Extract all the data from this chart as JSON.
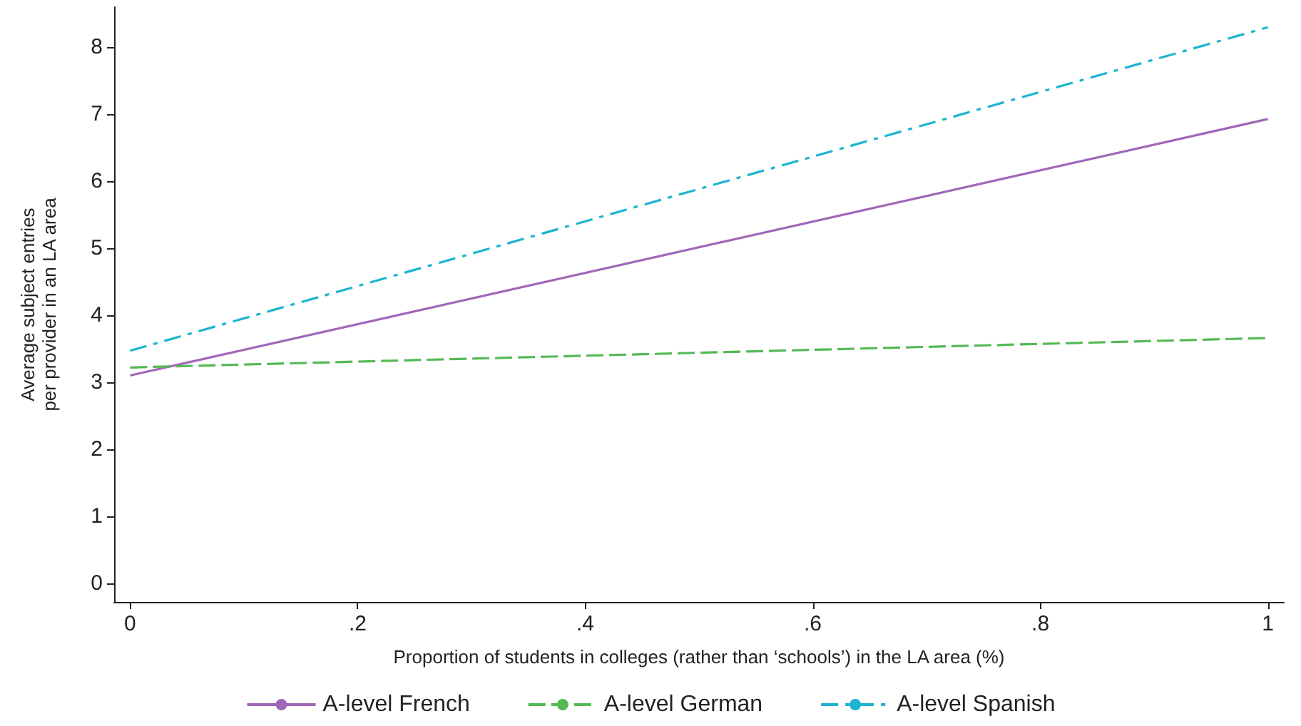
{
  "chart_data": {
    "type": "line",
    "xlabel": "Proportion of students in colleges (rather than ‘schools’) in the LA area (%)",
    "ylabel": "Average subject entries\nper provider in an LA area",
    "x": [
      0,
      1
    ],
    "series": [
      {
        "name": "A-level French",
        "color": "#a066b8",
        "values": [
          3.1,
          6.93
        ],
        "line_style": "solid"
      },
      {
        "name": "A-level German",
        "color": "#55b955",
        "values": [
          3.22,
          3.66
        ],
        "line_style": "dashed"
      },
      {
        "name": "A-level Spanish",
        "color": "#1cb4d0",
        "values": [
          3.47,
          8.3
        ],
        "line_style": "dashdot"
      }
    ],
    "xlim": [
      -0.014,
      1.014
    ],
    "xticks": [
      0,
      {
        "value": 0.2,
        "label": ".2"
      },
      {
        "value": 0.4,
        "label": ".4"
      },
      {
        "value": 0.6,
        "label": ".6"
      },
      {
        "value": 0.8,
        "label": ".8"
      },
      1
    ],
    "ylim": [
      -0.28,
      8.6
    ],
    "yticks": [
      0,
      1,
      2,
      3,
      4,
      5,
      6,
      7,
      8
    ],
    "grid": false,
    "legend": "bottom",
    "marker": "none"
  }
}
